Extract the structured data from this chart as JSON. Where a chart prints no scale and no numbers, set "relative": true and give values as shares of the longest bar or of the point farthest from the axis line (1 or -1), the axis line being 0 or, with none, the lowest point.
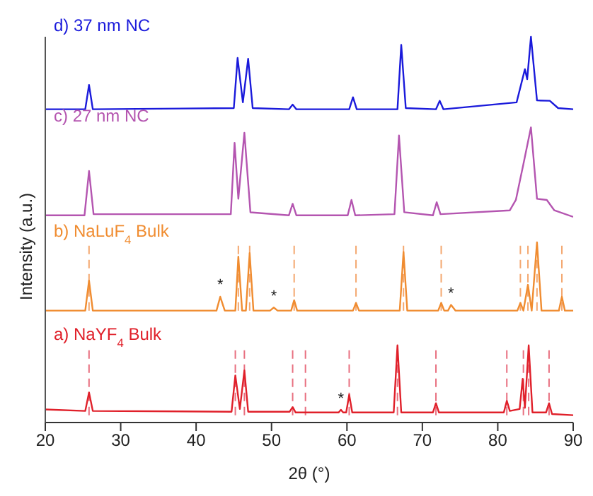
{
  "chart_data": {
    "type": "line",
    "xlabel": "2θ (°)",
    "ylabel": "Intensity (a.u.)",
    "relative": true,
    "xlim": [
      20,
      90
    ],
    "xticks": [
      20,
      30,
      40,
      50,
      60,
      70,
      80,
      90
    ],
    "legend": false,
    "grid": false,
    "marker": "none",
    "line_style": "solid",
    "series": [
      {
        "name": "a) NaYF$_{4}$ Bulk",
        "color": "#e0202a",
        "x": [
          20,
          25.3,
          25.8,
          26.3,
          44.7,
          45.2,
          45.8,
          46.4,
          46.9,
          52.4,
          52.8,
          53.2,
          58.9,
          59.2,
          59.5,
          59.9,
          60.3,
          60.7,
          66.2,
          66.7,
          67.2,
          71.4,
          71.8,
          72.2,
          80.8,
          81.2,
          81.6,
          82.9,
          83.3,
          83.6,
          84.1,
          84.6,
          86.4,
          86.8,
          87.2,
          90
        ],
        "values": [
          0.034,
          0.03,
          0.078,
          0.03,
          0.028,
          0.122,
          0.035,
          0.135,
          0.028,
          0.028,
          0.04,
          0.026,
          0.026,
          0.033,
          0.026,
          0.026,
          0.072,
          0.026,
          0.026,
          0.2,
          0.026,
          0.026,
          0.05,
          0.026,
          0.026,
          0.056,
          0.03,
          0.035,
          0.113,
          0.038,
          0.2,
          0.026,
          0.026,
          0.05,
          0.022,
          0.019
        ]
      },
      {
        "name": "b) NaLuF$_{4}$ Bulk",
        "color": "#f08c30",
        "x": [
          20,
          25.3,
          25.8,
          26.3,
          42.7,
          43.2,
          43.8,
          45.2,
          45.6,
          46.1,
          46.6,
          47.1,
          47.6,
          49.8,
          50.3,
          50.8,
          52.6,
          53.0,
          53.4,
          60.8,
          61.2,
          61.6,
          67.0,
          67.5,
          68.0,
          72.1,
          72.5,
          72.9,
          73.4,
          73.8,
          74.4,
          82.6,
          83.0,
          83.4,
          84.0,
          84.5,
          85.2,
          85.8,
          88.1,
          88.5,
          88.9,
          90
        ],
        "values": [
          0.29,
          0.29,
          0.368,
          0.29,
          0.29,
          0.326,
          0.29,
          0.29,
          0.43,
          0.29,
          0.29,
          0.439,
          0.29,
          0.29,
          0.298,
          0.29,
          0.29,
          0.317,
          0.29,
          0.29,
          0.31,
          0.29,
          0.29,
          0.442,
          0.29,
          0.29,
          0.31,
          0.29,
          0.29,
          0.305,
          0.29,
          0.29,
          0.31,
          0.29,
          0.357,
          0.29,
          0.467,
          0.29,
          0.29,
          0.326,
          0.29,
          0.29
        ]
      },
      {
        "name": "c) 27 nm NC",
        "color": "#b455b0",
        "x": [
          20,
          25.2,
          25.8,
          26.4,
          44.6,
          45.1,
          45.6,
          46.4,
          47.2,
          52.3,
          52.8,
          53.3,
          60.1,
          60.6,
          61.1,
          66.3,
          66.9,
          67.6,
          71.4,
          71.9,
          72.4,
          81.6,
          82.4,
          83.4,
          84.4,
          85.2,
          86.5,
          87.5,
          90
        ],
        "values": [
          0.537,
          0.537,
          0.652,
          0.54,
          0.54,
          0.725,
          0.58,
          0.751,
          0.545,
          0.537,
          0.567,
          0.537,
          0.537,
          0.577,
          0.537,
          0.54,
          0.744,
          0.545,
          0.537,
          0.571,
          0.54,
          0.55,
          0.577,
          0.67,
          0.765,
          0.58,
          0.577,
          0.55,
          0.533
        ]
      },
      {
        "name": "d) 37 nm NC",
        "color": "#1a1adb",
        "x": [
          20,
          25.3,
          25.8,
          26.3,
          45.0,
          45.5,
          46.2,
          46.9,
          47.5,
          52.3,
          52.8,
          53.3,
          60.3,
          60.8,
          61.3,
          66.7,
          67.2,
          67.8,
          71.8,
          72.3,
          72.8,
          82.5,
          83.6,
          83.9,
          84.4,
          85.2,
          86.9,
          88,
          90
        ],
        "values": [
          0.812,
          0.812,
          0.875,
          0.812,
          0.815,
          0.945,
          0.83,
          0.943,
          0.815,
          0.812,
          0.824,
          0.812,
          0.812,
          0.843,
          0.812,
          0.812,
          0.979,
          0.815,
          0.812,
          0.834,
          0.812,
          0.83,
          0.916,
          0.89,
          1.0,
          0.835,
          0.834,
          0.815,
          0.812
        ]
      }
    ],
    "ref_lines": [
      {
        "axis": "x",
        "value": 25.8,
        "color": "#e87080",
        "line_style": "dashed"
      },
      {
        "axis": "x",
        "value": 45.2,
        "color": "#e87080",
        "line_style": "dashed"
      },
      {
        "axis": "x",
        "value": 46.4,
        "color": "#e87080",
        "line_style": "dashed"
      },
      {
        "axis": "x",
        "value": 52.8,
        "color": "#e87080",
        "line_style": "dashed"
      },
      {
        "axis": "x",
        "value": 54.5,
        "color": "#e87080",
        "line_style": "dashed"
      },
      {
        "axis": "x",
        "value": 60.3,
        "color": "#e87080",
        "line_style": "dashed"
      },
      {
        "axis": "x",
        "value": 66.7,
        "color": "#e87080",
        "line_style": "dashed"
      },
      {
        "axis": "x",
        "value": 71.8,
        "color": "#e87080",
        "line_style": "dashed"
      },
      {
        "axis": "x",
        "value": 81.2,
        "color": "#e87080",
        "line_style": "dashed"
      },
      {
        "axis": "x",
        "value": 83.4,
        "color": "#e87080",
        "line_style": "dashed"
      },
      {
        "axis": "x",
        "value": 84.1,
        "color": "#e87080",
        "line_style": "dashed"
      },
      {
        "axis": "x",
        "value": 86.8,
        "color": "#e87080",
        "line_style": "dashed"
      },
      {
        "axis": "x",
        "value": 25.8,
        "color": "#f4a870",
        "line_style": "dashed"
      },
      {
        "axis": "x",
        "value": 45.6,
        "color": "#f4a870",
        "line_style": "dashed"
      },
      {
        "axis": "x",
        "value": 47.1,
        "color": "#f4a870",
        "line_style": "dashed"
      },
      {
        "axis": "x",
        "value": 53.0,
        "color": "#f4a870",
        "line_style": "dashed"
      },
      {
        "axis": "x",
        "value": 61.2,
        "color": "#f4a870",
        "line_style": "dashed"
      },
      {
        "axis": "x",
        "value": 67.5,
        "color": "#f4a870",
        "line_style": "dashed"
      },
      {
        "axis": "x",
        "value": 72.5,
        "color": "#f4a870",
        "line_style": "dashed"
      },
      {
        "axis": "x",
        "value": 83.0,
        "color": "#f4a870",
        "line_style": "dashed"
      },
      {
        "axis": "x",
        "value": 84.0,
        "color": "#f4a870",
        "line_style": "dashed"
      },
      {
        "axis": "x",
        "value": 85.2,
        "color": "#f4a870",
        "line_style": "dashed"
      },
      {
        "axis": "x",
        "value": 88.5,
        "color": "#f4a870",
        "line_style": "dashed"
      }
    ],
    "annotations": [
      {
        "text": "*",
        "x": 43.2,
        "y": 0.345
      },
      {
        "text": "*",
        "x": 50.3,
        "y": 0.315
      },
      {
        "text": "*",
        "x": 73.8,
        "y": 0.322
      },
      {
        "text": "*",
        "x": 59.2,
        "y": 0.05
      }
    ]
  }
}
